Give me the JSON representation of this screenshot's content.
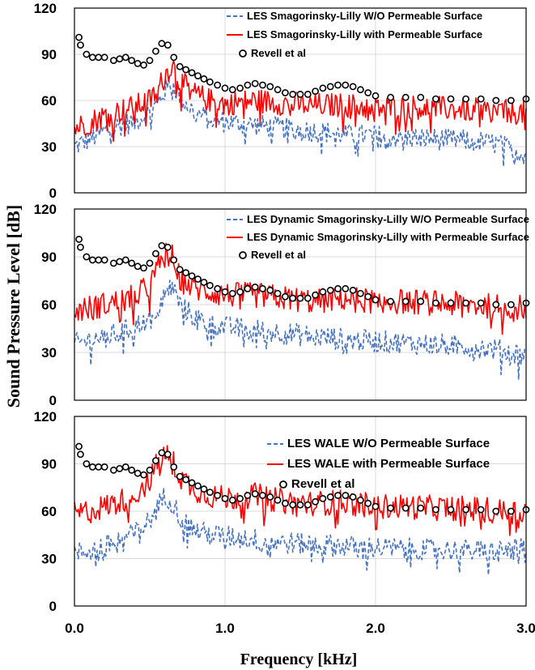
{
  "figure": {
    "ylabel": "Sound Pressure Level [dB]",
    "xlabel": "Frequency [kHz]"
  },
  "colors": {
    "without_surface": "#4472c4",
    "with_surface": "#ff0000",
    "reference": "#000000"
  },
  "chart_data": [
    {
      "type": "line",
      "xlim": [
        0,
        3.0
      ],
      "ylim": [
        0,
        120
      ],
      "yticks": [
        "0",
        "30",
        "60",
        "90",
        "120"
      ],
      "grid": true,
      "legend_position": "top-right",
      "series": [
        {
          "name": "LES Smagorinsky-Lilly W/O Permeable Surface",
          "style": "dashed",
          "color": "#4472c4",
          "x": [
            0.0,
            0.1,
            0.2,
            0.3,
            0.4,
            0.5,
            0.55,
            0.6,
            0.65,
            0.7,
            0.8,
            0.9,
            1.0,
            1.2,
            1.4,
            1.6,
            1.8,
            2.0,
            2.2,
            2.4,
            2.6,
            2.8,
            3.0
          ],
          "y": [
            30,
            35,
            40,
            44,
            46,
            52,
            58,
            66,
            72,
            62,
            52,
            48,
            46,
            44,
            42,
            40,
            38,
            37,
            36,
            35,
            34,
            32,
            25
          ]
        },
        {
          "name": "LES Smagorinsky-Lilly with Permeable Surface",
          "style": "solid",
          "color": "#ff0000",
          "x": [
            0.0,
            0.1,
            0.2,
            0.3,
            0.4,
            0.5,
            0.55,
            0.6,
            0.65,
            0.7,
            0.8,
            0.9,
            1.0,
            1.2,
            1.4,
            1.6,
            1.8,
            2.0,
            2.2,
            2.4,
            2.6,
            2.8,
            3.0
          ],
          "y": [
            42,
            46,
            50,
            53,
            56,
            60,
            66,
            76,
            84,
            72,
            64,
            60,
            58,
            60,
            58,
            57,
            57,
            55,
            56,
            55,
            54,
            53,
            52
          ]
        },
        {
          "name": "Revell et al",
          "style": "circles",
          "color": "#000000",
          "x": [
            0.03,
            0.04,
            0.08,
            0.12,
            0.16,
            0.2,
            0.26,
            0.3,
            0.34,
            0.38,
            0.42,
            0.46,
            0.5,
            0.54,
            0.58,
            0.62,
            0.66,
            0.7,
            0.74,
            0.78,
            0.82,
            0.86,
            0.9,
            0.95,
            1.0,
            1.05,
            1.1,
            1.15,
            1.2,
            1.25,
            1.3,
            1.35,
            1.4,
            1.45,
            1.5,
            1.55,
            1.6,
            1.65,
            1.7,
            1.75,
            1.8,
            1.85,
            1.9,
            1.95,
            2.0,
            2.1,
            2.2,
            2.3,
            2.4,
            2.5,
            2.6,
            2.7,
            2.8,
            2.9,
            3.0
          ],
          "y": [
            101,
            96,
            90,
            88,
            88,
            88,
            86,
            87,
            88,
            86,
            84,
            83,
            86,
            92,
            97,
            96,
            88,
            82,
            80,
            78,
            76,
            74,
            72,
            70,
            68,
            67,
            68,
            70,
            71,
            70,
            69,
            67,
            65,
            64,
            64,
            64,
            66,
            68,
            69,
            70,
            70,
            69,
            67,
            65,
            63,
            62,
            62,
            62,
            61,
            61,
            61,
            61,
            60,
            60,
            61
          ]
        }
      ]
    },
    {
      "type": "line",
      "xlim": [
        0,
        3.0
      ],
      "ylim": [
        0,
        120
      ],
      "yticks": [
        "0",
        "30",
        "60",
        "90",
        "120"
      ],
      "grid": true,
      "legend_position": "top-right",
      "series": [
        {
          "name": "LES Dynamic Smagorinsky-Lilly W/O Permeable Surface",
          "style": "dashed",
          "color": "#4472c4",
          "x": [
            0.0,
            0.1,
            0.2,
            0.3,
            0.4,
            0.5,
            0.55,
            0.6,
            0.65,
            0.7,
            0.8,
            0.9,
            1.0,
            1.2,
            1.4,
            1.6,
            1.8,
            2.0,
            2.2,
            2.4,
            2.6,
            2.8,
            3.0
          ],
          "y": [
            35,
            38,
            40,
            42,
            46,
            52,
            58,
            66,
            72,
            60,
            52,
            48,
            46,
            44,
            42,
            40,
            38,
            37,
            36,
            35,
            34,
            32,
            28
          ]
        },
        {
          "name": "LES Dynamic Smagorinsky-Lilly with Permeable Surface",
          "style": "solid",
          "color": "#ff0000",
          "x": [
            0.0,
            0.1,
            0.2,
            0.3,
            0.4,
            0.5,
            0.55,
            0.6,
            0.65,
            0.7,
            0.8,
            0.9,
            1.0,
            1.2,
            1.4,
            1.6,
            1.8,
            2.0,
            2.2,
            2.4,
            2.6,
            2.8,
            3.0
          ],
          "y": [
            56,
            58,
            60,
            62,
            65,
            72,
            82,
            92,
            90,
            76,
            70,
            68,
            66,
            66,
            64,
            62,
            64,
            62,
            62,
            61,
            60,
            59,
            58
          ]
        },
        {
          "name": "Revell et al",
          "style": "circles",
          "color": "#000000",
          "x": [
            0.03,
            0.04,
            0.08,
            0.12,
            0.16,
            0.2,
            0.26,
            0.3,
            0.34,
            0.38,
            0.42,
            0.46,
            0.5,
            0.54,
            0.58,
            0.62,
            0.66,
            0.7,
            0.74,
            0.78,
            0.82,
            0.86,
            0.9,
            0.95,
            1.0,
            1.05,
            1.1,
            1.15,
            1.2,
            1.25,
            1.3,
            1.35,
            1.4,
            1.45,
            1.5,
            1.55,
            1.6,
            1.65,
            1.7,
            1.75,
            1.8,
            1.85,
            1.9,
            1.95,
            2.0,
            2.1,
            2.2,
            2.3,
            2.4,
            2.5,
            2.6,
            2.7,
            2.8,
            2.9,
            3.0
          ],
          "y": [
            101,
            96,
            90,
            88,
            88,
            88,
            86,
            87,
            88,
            86,
            84,
            83,
            86,
            92,
            97,
            96,
            88,
            82,
            80,
            78,
            76,
            74,
            72,
            70,
            68,
            67,
            68,
            70,
            71,
            70,
            69,
            67,
            65,
            64,
            64,
            64,
            66,
            68,
            69,
            70,
            70,
            69,
            67,
            65,
            63,
            62,
            62,
            62,
            61,
            61,
            61,
            61,
            60,
            60,
            61
          ]
        }
      ]
    },
    {
      "type": "line",
      "xlim": [
        0,
        3.0
      ],
      "ylim": [
        0,
        120
      ],
      "xticks": [
        "0.0",
        "1.0",
        "2.0",
        "3.0"
      ],
      "yticks": [
        "0",
        "30",
        "60",
        "90",
        "120"
      ],
      "grid": true,
      "legend_position": "top-right",
      "series": [
        {
          "name": "LES WALE W/O Permeable Surface",
          "style": "dashed",
          "color": "#4472c4",
          "x": [
            0.0,
            0.1,
            0.2,
            0.3,
            0.4,
            0.5,
            0.55,
            0.6,
            0.65,
            0.7,
            0.8,
            0.9,
            1.0,
            1.2,
            1.4,
            1.6,
            1.8,
            2.0,
            2.2,
            2.4,
            2.6,
            2.8,
            3.0
          ],
          "y": [
            33,
            35,
            38,
            42,
            46,
            54,
            62,
            70,
            66,
            56,
            48,
            45,
            44,
            42,
            40,
            39,
            38,
            37,
            36,
            36,
            35,
            35,
            36
          ]
        },
        {
          "name": "LES WALE with Permeable Surface",
          "style": "solid",
          "color": "#ff0000",
          "x": [
            0.0,
            0.1,
            0.2,
            0.3,
            0.4,
            0.5,
            0.55,
            0.6,
            0.65,
            0.7,
            0.8,
            0.9,
            1.0,
            1.2,
            1.4,
            1.6,
            1.8,
            2.0,
            2.2,
            2.4,
            2.6,
            2.8,
            3.0
          ],
          "y": [
            58,
            60,
            63,
            66,
            70,
            80,
            90,
            96,
            92,
            82,
            74,
            70,
            68,
            70,
            66,
            65,
            66,
            63,
            63,
            62,
            62,
            60,
            60
          ]
        },
        {
          "name": "Revell et al",
          "style": "circles",
          "color": "#000000",
          "x": [
            0.03,
            0.04,
            0.08,
            0.12,
            0.16,
            0.2,
            0.26,
            0.3,
            0.34,
            0.38,
            0.42,
            0.46,
            0.5,
            0.54,
            0.58,
            0.62,
            0.66,
            0.7,
            0.74,
            0.78,
            0.82,
            0.86,
            0.9,
            0.95,
            1.0,
            1.05,
            1.1,
            1.15,
            1.2,
            1.25,
            1.3,
            1.35,
            1.4,
            1.45,
            1.5,
            1.55,
            1.6,
            1.65,
            1.7,
            1.75,
            1.8,
            1.85,
            1.9,
            1.95,
            2.0,
            2.1,
            2.2,
            2.3,
            2.4,
            2.5,
            2.6,
            2.7,
            2.8,
            2.9,
            3.0
          ],
          "y": [
            101,
            96,
            90,
            88,
            88,
            88,
            86,
            87,
            88,
            86,
            84,
            83,
            86,
            92,
            97,
            96,
            88,
            82,
            80,
            78,
            76,
            74,
            72,
            70,
            68,
            67,
            68,
            70,
            71,
            70,
            69,
            67,
            65,
            64,
            64,
            64,
            66,
            68,
            69,
            70,
            70,
            69,
            67,
            65,
            63,
            62,
            62,
            62,
            61,
            61,
            61,
            61,
            60,
            60,
            61
          ]
        }
      ]
    }
  ]
}
